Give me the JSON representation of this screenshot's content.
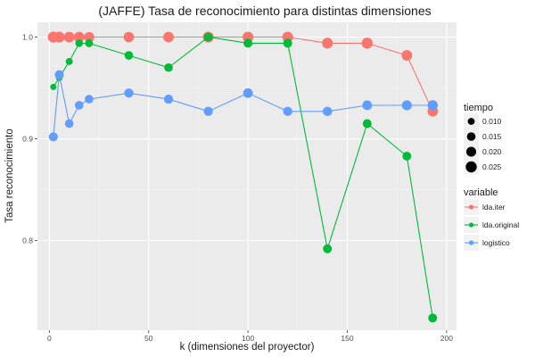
{
  "chart_data": {
    "type": "scatter",
    "title": "(JAFFE) Tasa de reconocimiento para distintas dimensiones",
    "xlabel": "k (dimensiones del proyector)",
    "ylabel": "Tasa reconocimiento",
    "xlim": [
      -6,
      205
    ],
    "ylim": [
      0.712,
      1.0145
    ],
    "x_ticks": [
      0,
      50,
      100,
      150,
      200
    ],
    "x_tick_labels": [
      "0",
      "50",
      "100",
      "150",
      "200"
    ],
    "y_ticks": [
      0.8,
      0.9,
      1.0
    ],
    "y_tick_labels": [
      "0.8",
      "0.9",
      "1.0"
    ],
    "grid": true,
    "legend_position": "right",
    "size_legend": {
      "title": "tiempo",
      "values": [
        0.01,
        0.015,
        0.02,
        0.025
      ],
      "labels": [
        "0.010",
        "0.015",
        "0.020",
        "0.025"
      ]
    },
    "color_legend": {
      "title": "variable"
    },
    "series": [
      {
        "name": "lda.iter",
        "color": "#F8766D",
        "x": [
          2,
          5,
          10,
          15,
          20,
          40,
          60,
          80,
          100,
          120,
          140,
          160,
          180,
          193
        ],
        "y": [
          1.0,
          1.0,
          1.0,
          1.0,
          1.0,
          1.0,
          1.0,
          1.0,
          1.0,
          1.0,
          0.994,
          0.994,
          0.982,
          0.927
        ],
        "size": [
          0.025,
          0.024,
          0.023,
          0.023,
          0.021,
          0.022,
          0.023,
          0.024,
          0.024,
          0.024,
          0.024,
          0.025,
          0.023,
          0.022
        ]
      },
      {
        "name": "lda.original",
        "color": "#00BA38",
        "x": [
          2,
          5,
          10,
          15,
          20,
          40,
          60,
          80,
          100,
          120,
          140,
          160,
          180,
          193
        ],
        "y": [
          0.951,
          0.96,
          0.976,
          0.994,
          0.994,
          0.982,
          0.97,
          1.0,
          0.994,
          0.994,
          0.792,
          0.915,
          0.883,
          0.724
        ],
        "size": [
          0.008,
          0.009,
          0.01,
          0.012,
          0.013,
          0.015,
          0.015,
          0.016,
          0.016,
          0.016,
          0.016,
          0.016,
          0.016,
          0.016
        ]
      },
      {
        "name": "logistico",
        "color": "#619CFF",
        "x": [
          2,
          5,
          10,
          15,
          20,
          40,
          60,
          80,
          100,
          120,
          140,
          160,
          180,
          193
        ],
        "y": [
          0.902,
          0.963,
          0.915,
          0.933,
          0.939,
          0.945,
          0.939,
          0.927,
          0.945,
          0.927,
          0.927,
          0.933,
          0.933,
          0.933
        ],
        "size": [
          0.017,
          0.017,
          0.015,
          0.015,
          0.015,
          0.017,
          0.017,
          0.017,
          0.019,
          0.017,
          0.018,
          0.019,
          0.02,
          0.021
        ]
      }
    ]
  }
}
